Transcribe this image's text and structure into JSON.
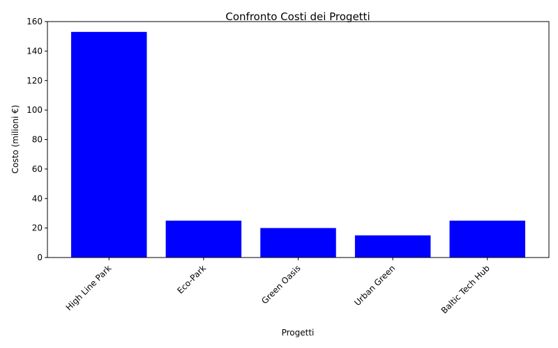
{
  "chart_data": {
    "type": "bar",
    "title": "Confronto Costi dei Progetti",
    "xlabel": "Progetti",
    "ylabel": "Costo (milioni €)",
    "categories": [
      "High Line Park",
      "Eco-Park",
      "Green Oasis",
      "Urban Green",
      "Baltic Tech Hub"
    ],
    "values": [
      153,
      25,
      20,
      15,
      25
    ],
    "ylim": [
      0,
      160
    ],
    "yticks": [
      0,
      20,
      40,
      60,
      80,
      100,
      120,
      140,
      160
    ],
    "bar_color": "#0000ff",
    "grid": false,
    "x_tick_rotation_deg": 45
  }
}
